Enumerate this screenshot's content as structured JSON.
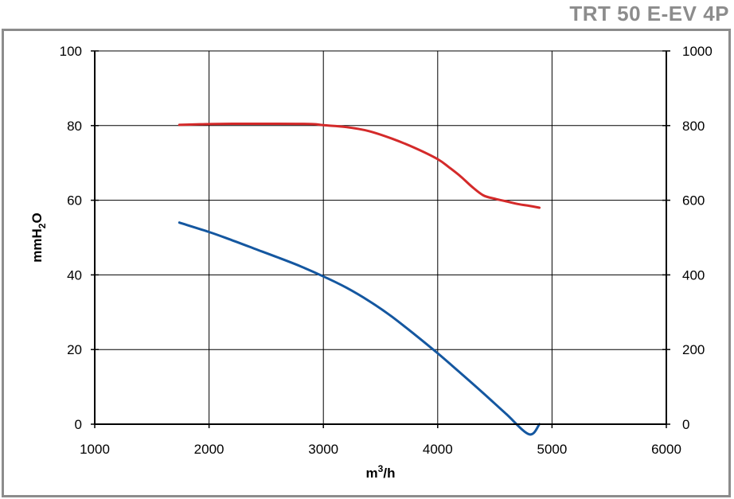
{
  "header": {
    "model": "TRT 50 E-EV 4P"
  },
  "chart_data": {
    "type": "line",
    "title": "",
    "xlabel_main": "m",
    "xlabel_sup": "3",
    "xlabel_tail": "/h",
    "ylabel_main": "mmH",
    "ylabel_sub": "2",
    "ylabel_tail": "O",
    "xlim": [
      1000,
      6000
    ],
    "ylim": [
      0,
      100
    ],
    "y2lim": [
      0,
      1000
    ],
    "x_ticks": [
      1000,
      2000,
      3000,
      4000,
      5000,
      6000
    ],
    "y_ticks": [
      0,
      20,
      40,
      60,
      80,
      100
    ],
    "y2_ticks": [
      0,
      200,
      400,
      600,
      800,
      1000
    ],
    "grid": true,
    "series": [
      {
        "axis": "right",
        "color": "#d42a2a",
        "x": [
          1740,
          2000,
          2300,
          2600,
          2900,
          3000,
          3200,
          3400,
          3600,
          3800,
          4000,
          4100,
          4200,
          4300,
          4400,
          4500,
          4600,
          4700,
          4800,
          4890
        ],
        "y": [
          802,
          804,
          805,
          805,
          804,
          801,
          796,
          785,
          765,
          740,
          710,
          688,
          664,
          636,
          613,
          604,
          597,
          590,
          585,
          580
        ]
      },
      {
        "axis": "left",
        "color": "#1457a0",
        "x": [
          1740,
          2000,
          2200,
          2400,
          2600,
          2800,
          3000,
          3200,
          3400,
          3600,
          3800,
          4000,
          4200,
          4400,
          4600,
          4800,
          4890
        ],
        "y": [
          54,
          51.5,
          49.3,
          47.0,
          44.7,
          42.3,
          39.6,
          36.6,
          33.0,
          28.8,
          24.0,
          19.0,
          13.7,
          8.3,
          2.7,
          -2.7,
          0
        ]
      }
    ]
  }
}
